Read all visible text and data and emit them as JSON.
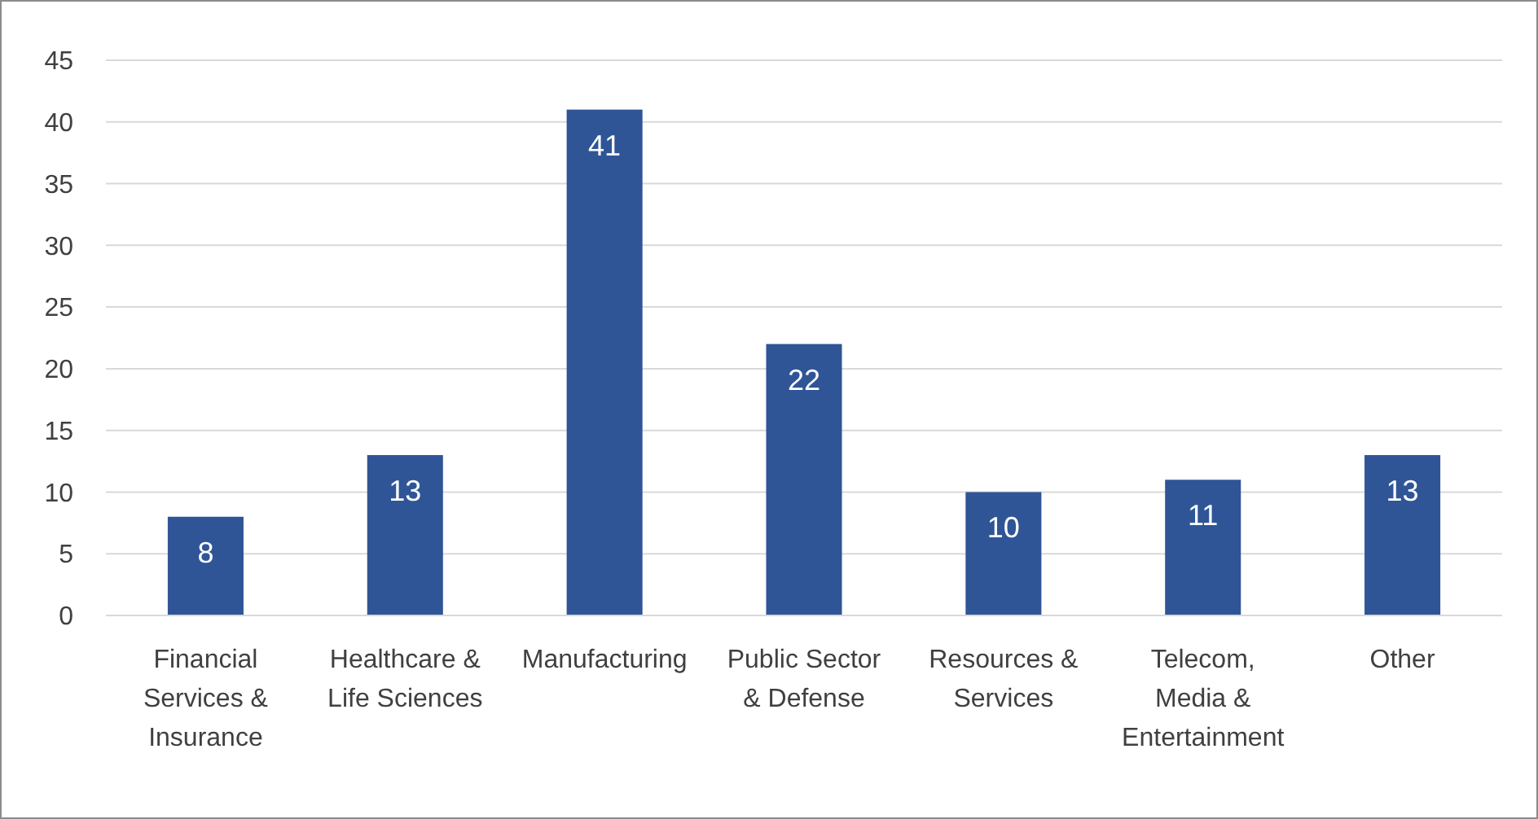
{
  "chart_data": {
    "type": "bar",
    "categories": [
      "Financial Services & Insurance",
      "Healthcare & Life Sciences",
      "Manufacturing",
      "Public Sector & Defense",
      "Resources & Services",
      "Telecom, Media & Entertainment",
      "Other"
    ],
    "values": [
      8,
      13,
      41,
      22,
      10,
      11,
      13
    ],
    "color": "#2f5597",
    "ylim": [
      0,
      45
    ],
    "yticks": [
      0,
      5,
      10,
      15,
      20,
      25,
      30,
      35,
      40,
      45
    ],
    "grid": "y",
    "data_labels": true
  }
}
